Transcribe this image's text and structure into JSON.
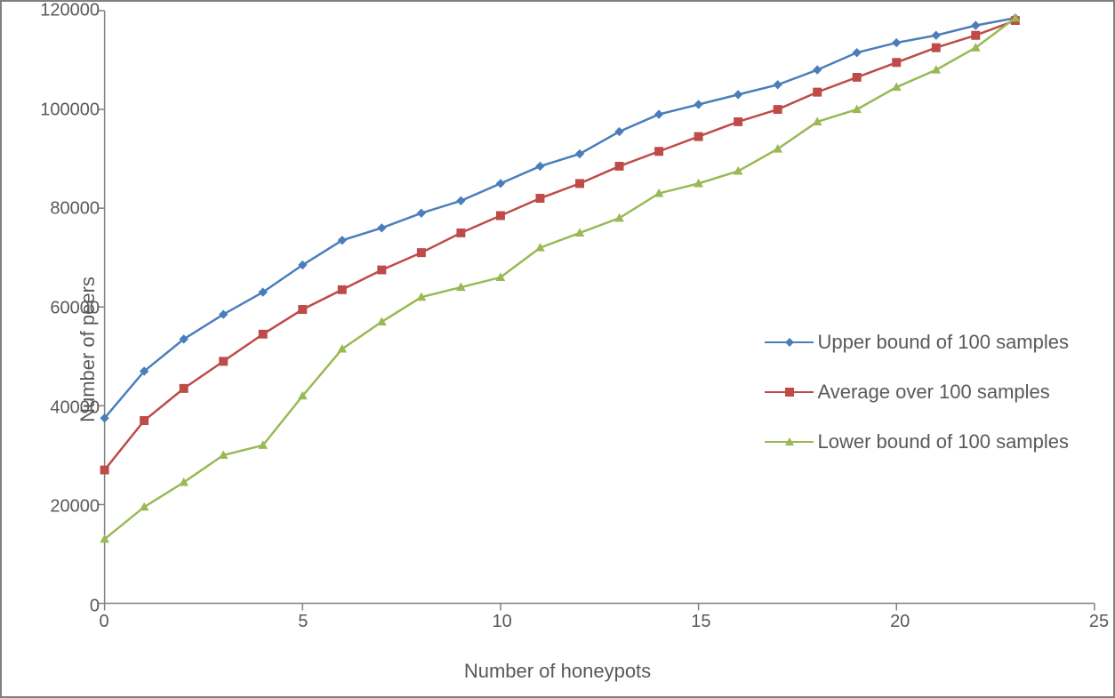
{
  "chart": {
    "type": "line",
    "x_label": "Number of honeypots",
    "y_label": "Number of peers",
    "x_label_fontsize": 22,
    "y_label_fontsize": 22,
    "tick_fontsize": 20,
    "legend_fontsize": 22,
    "background_color": "#ffffff",
    "border_color": "#808080",
    "axis_color": "#808080",
    "tick_mark_color": "#808080",
    "text_color": "#595959",
    "xlim": [
      0,
      25
    ],
    "ylim": [
      0,
      120000
    ],
    "x_ticks": [
      0,
      5,
      10,
      15,
      20,
      25
    ],
    "y_ticks": [
      0,
      20000,
      40000,
      60000,
      80000,
      100000,
      120000
    ],
    "line_width": 2.5,
    "marker_size": 9,
    "series": [
      {
        "name": "Upper bound of 100 samples",
        "color": "#4a7ebb",
        "marker": "diamond",
        "x": [
          0,
          1,
          2,
          3,
          4,
          5,
          6,
          7,
          8,
          9,
          10,
          11,
          12,
          13,
          14,
          15,
          16,
          17,
          18,
          19,
          20,
          21,
          22,
          23
        ],
        "y": [
          37500,
          47000,
          53500,
          58500,
          63000,
          68500,
          73500,
          76000,
          79000,
          81500,
          85000,
          88500,
          91000,
          95500,
          99000,
          101000,
          103000,
          105000,
          108000,
          111500,
          113500,
          115000,
          117000,
          118500
        ]
      },
      {
        "name": "Average over 100 samples",
        "color": "#be4b48",
        "marker": "square",
        "x": [
          0,
          1,
          2,
          3,
          4,
          5,
          6,
          7,
          8,
          9,
          10,
          11,
          12,
          13,
          14,
          15,
          16,
          17,
          18,
          19,
          20,
          21,
          22,
          23
        ],
        "y": [
          27000,
          37000,
          43500,
          49000,
          54500,
          59500,
          63500,
          67500,
          71000,
          75000,
          78500,
          82000,
          85000,
          88500,
          91500,
          94500,
          97500,
          100000,
          103500,
          106500,
          109500,
          112500,
          115000,
          118000
        ]
      },
      {
        "name": "Lower bound of 100 samples",
        "color": "#98b954",
        "marker": "triangle",
        "x": [
          0,
          1,
          2,
          3,
          4,
          5,
          6,
          7,
          8,
          9,
          10,
          11,
          12,
          13,
          14,
          15,
          16,
          17,
          18,
          19,
          20,
          21,
          22,
          23
        ],
        "y": [
          13000,
          19500,
          24500,
          30000,
          32000,
          42000,
          51500,
          57000,
          62000,
          64000,
          66000,
          72000,
          75000,
          78000,
          83000,
          85000,
          87500,
          92000,
          97500,
          100000,
          104500,
          108000,
          112500,
          118500
        ]
      }
    ]
  }
}
